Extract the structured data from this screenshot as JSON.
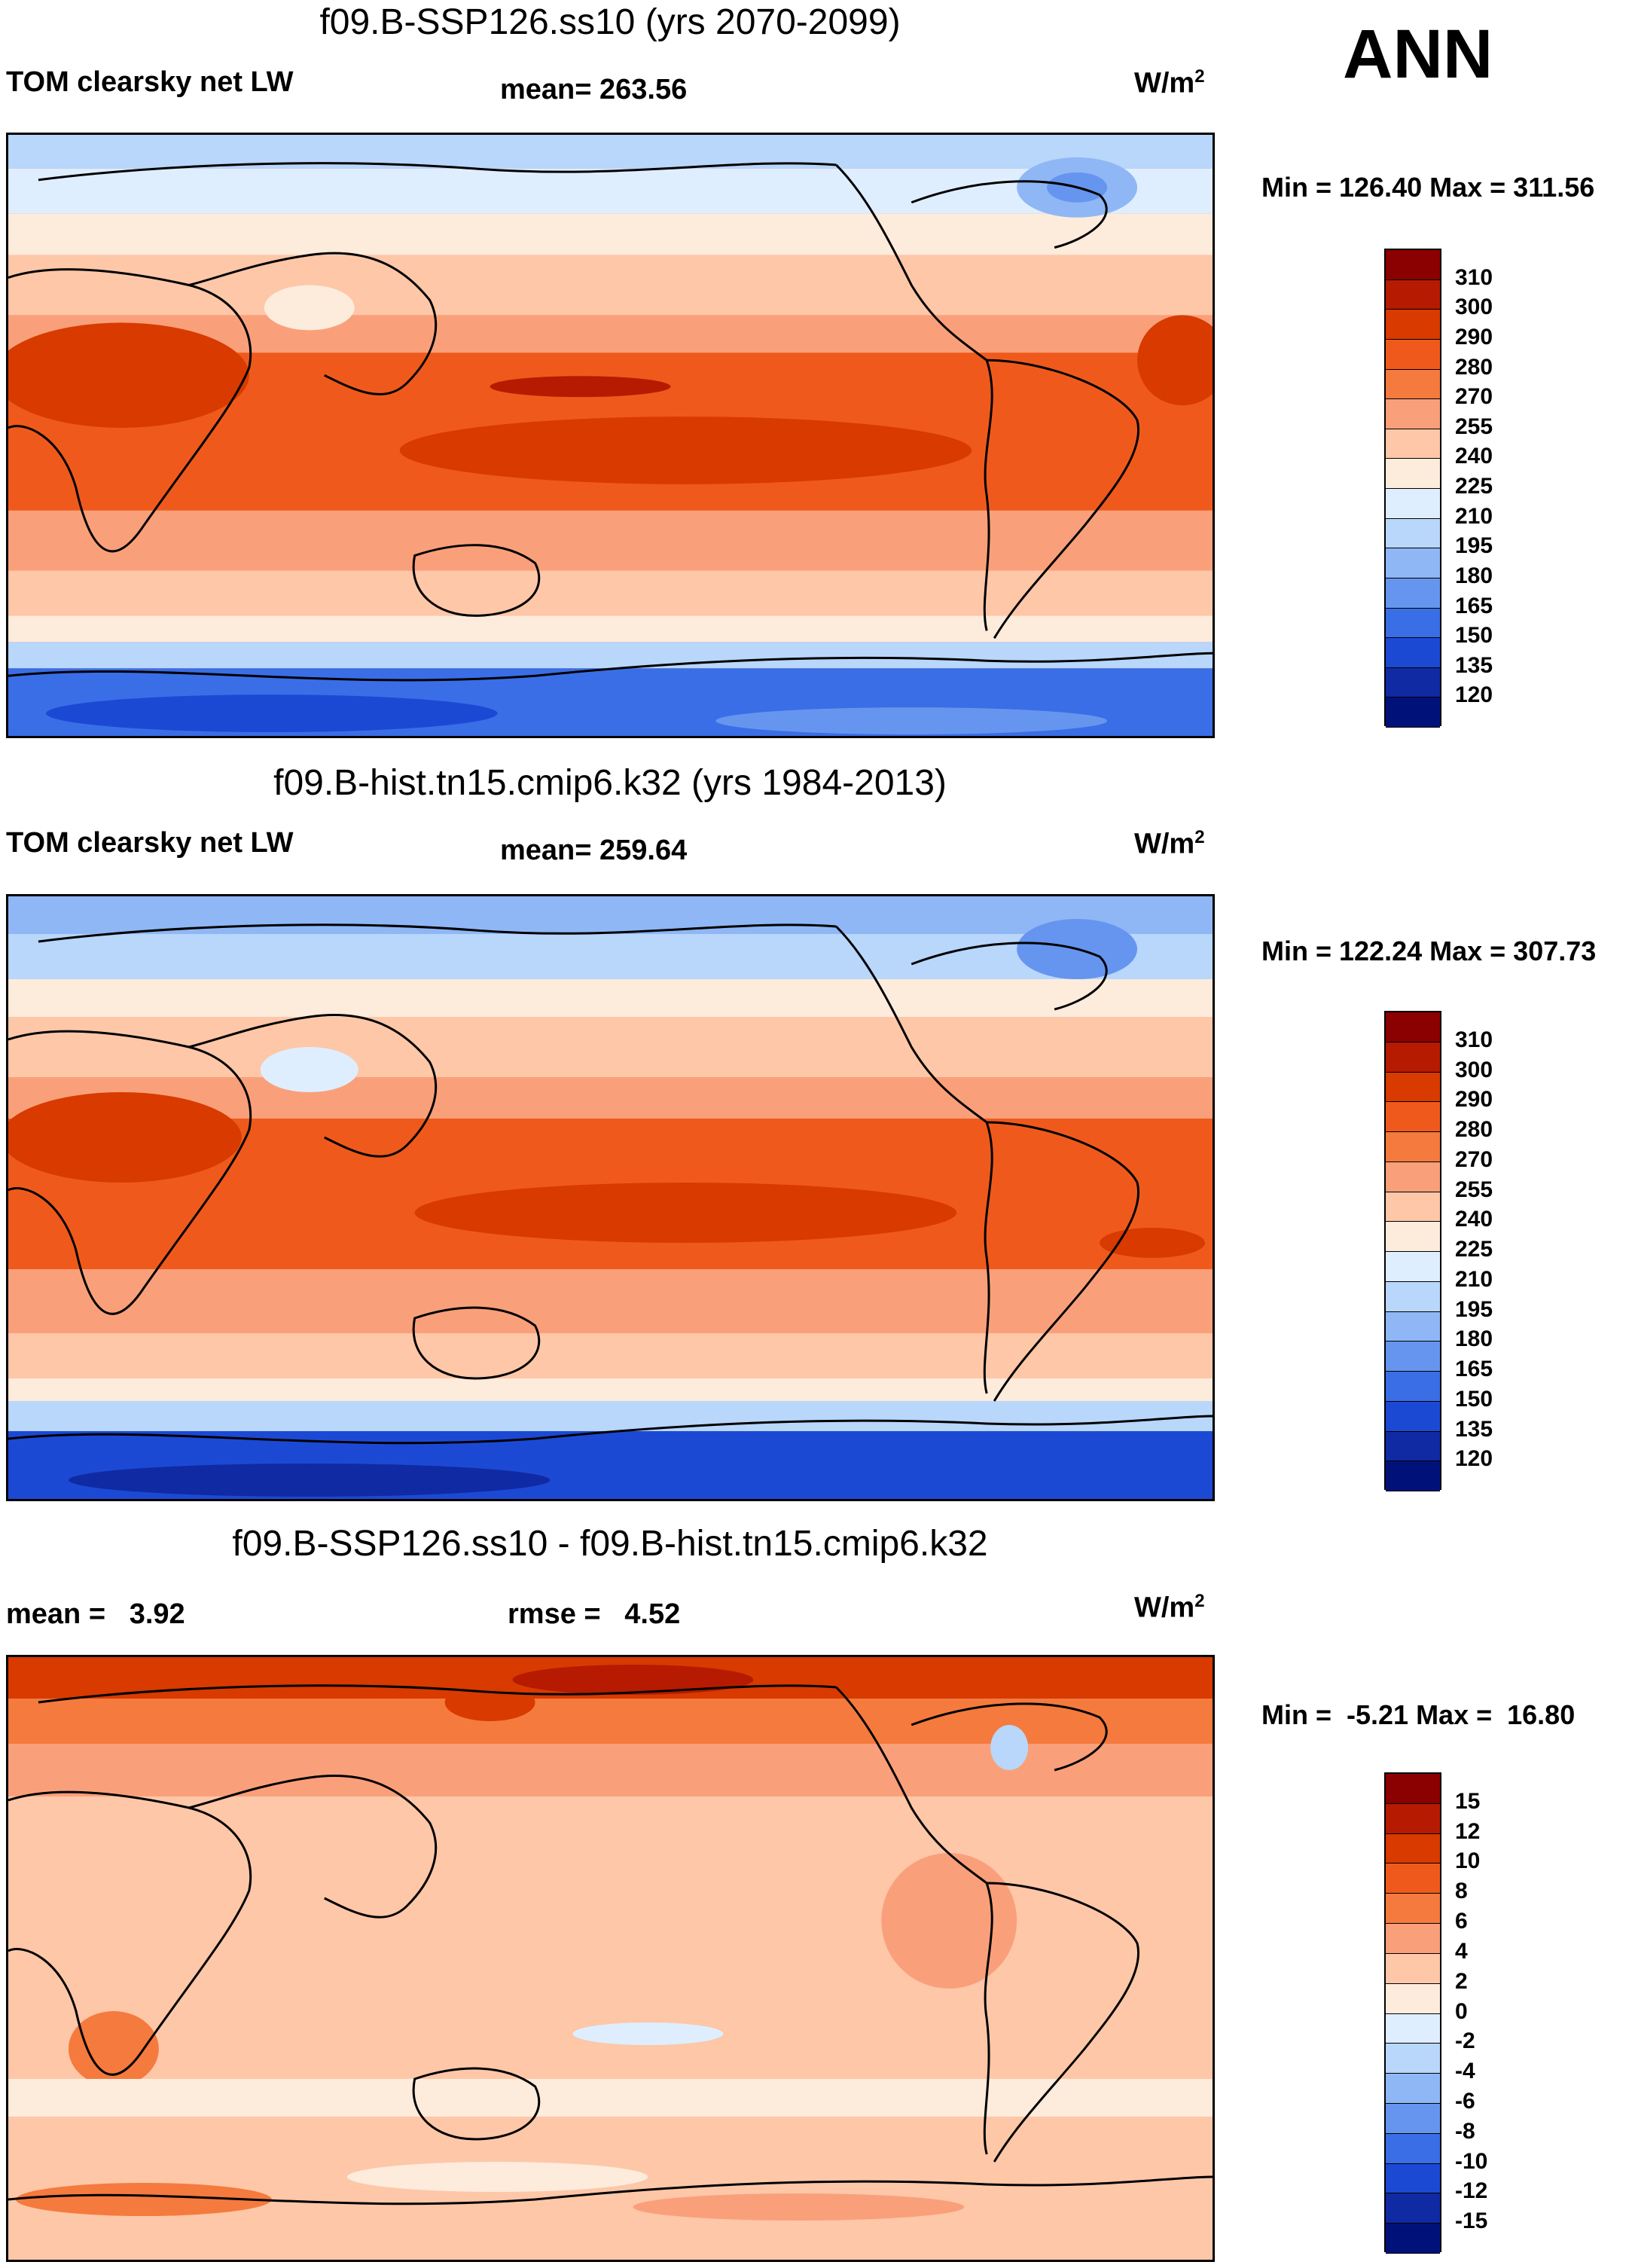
{
  "season": "ANN",
  "panels": [
    {
      "title": "f09.B-SSP126.ss10 (yrs 2070-2099)",
      "left_label": "TOM clearsky net LW",
      "mean_text": "mean= 263.56",
      "units": "W/m",
      "units_sup": "2",
      "minmax": "Min = 126.40 Max = 311.56",
      "scale": "abs"
    },
    {
      "title": "f09.B-hist.tn15.cmip6.k32 (yrs 1984-2013)",
      "left_label": "TOM clearsky net LW",
      "mean_text": "mean= 259.64",
      "units": "W/m",
      "units_sup": "2",
      "minmax": "Min = 122.24 Max = 307.73",
      "scale": "abs"
    },
    {
      "title": "f09.B-SSP126.ss10 - f09.B-hist.tn15.cmip6.k32",
      "left_label": "mean =   3.92",
      "mean_text": "rmse =   4.52",
      "units": "W/m",
      "units_sup": "2",
      "minmax": "Min =  -5.21 Max =  16.80",
      "scale": "diff"
    }
  ],
  "scales": {
    "abs": {
      "ticks": [
        "310",
        "300",
        "290",
        "280",
        "270",
        "255",
        "240",
        "225",
        "210",
        "195",
        "180",
        "165",
        "150",
        "135",
        "120"
      ],
      "colors": [
        "#8b0000",
        "#b61a00",
        "#d83a00",
        "#ef5a1c",
        "#f57a3e",
        "#f9a07a",
        "#fdc7a8",
        "#fdebdc",
        "#dfeeff",
        "#b9d6fb",
        "#8fb7f5",
        "#6595ee",
        "#3a6ee6",
        "#1c49d4",
        "#0f2aa3",
        "#00127a"
      ]
    },
    "diff": {
      "ticks": [
        "15",
        "12",
        "10",
        "8",
        "6",
        "4",
        "2",
        "0",
        "-2",
        "-4",
        "-6",
        "-8",
        "-10",
        "-12",
        "-15"
      ],
      "colors": [
        "#8b0000",
        "#b61a00",
        "#d83a00",
        "#ef5a1c",
        "#f57a3e",
        "#f9a07a",
        "#fdc7a8",
        "#fdebdc",
        "#dfeeff",
        "#b9d6fb",
        "#8fb7f5",
        "#6595ee",
        "#3a6ee6",
        "#1c49d4",
        "#0f2aa3",
        "#00127a"
      ]
    }
  }
}
